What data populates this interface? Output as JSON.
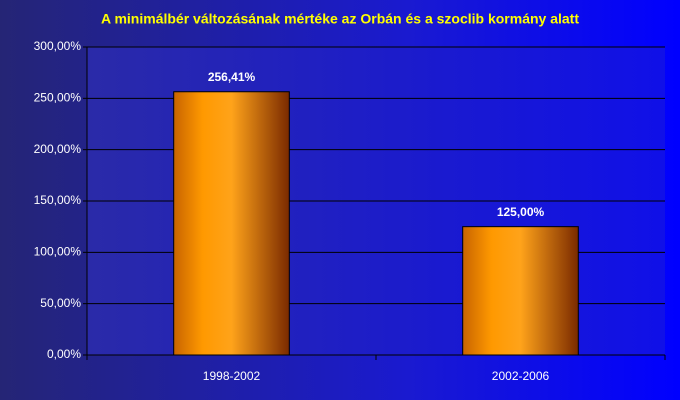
{
  "chart_data": {
    "type": "bar",
    "title": "A minimálbér változásának mértéke az Orbán és a szoclib kormány alatt",
    "categories": [
      "1998-2002",
      "2002-2006"
    ],
    "values": [
      256.41,
      125
    ],
    "value_labels": [
      "256,41%",
      "125,00%"
    ],
    "color": "#ff9900",
    "ylim": [
      0,
      300
    ],
    "yticks": [
      {
        "value": 0,
        "label": "0,00%"
      },
      {
        "value": 50,
        "label": "50,00%"
      },
      {
        "value": 100,
        "label": "100,00%"
      },
      {
        "value": 150,
        "label": "150,00%"
      },
      {
        "value": 200,
        "label": "200,00%"
      },
      {
        "value": 250,
        "label": "250,00%"
      },
      {
        "value": 300,
        "label": "300,00%"
      }
    ],
    "grid": true
  }
}
